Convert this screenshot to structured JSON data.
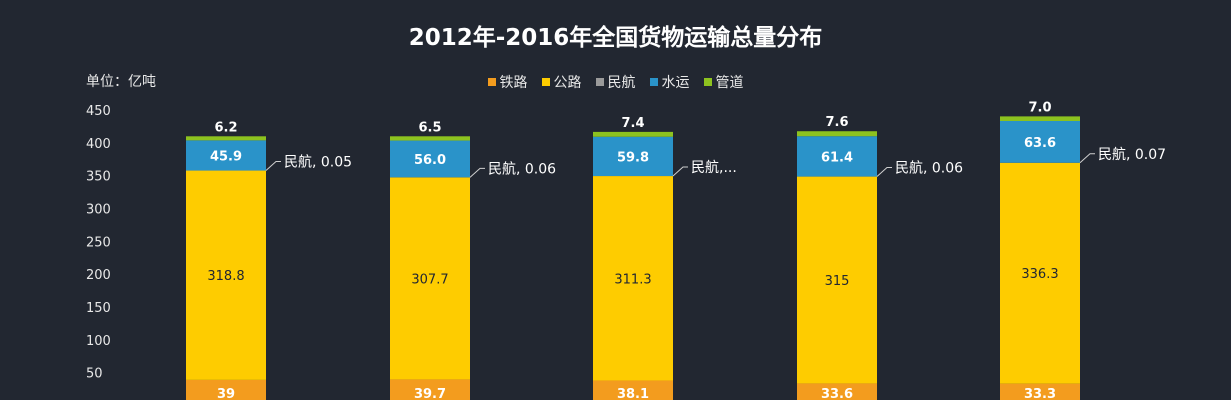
{
  "title": "2012年-2016年全国货物运输总量分布",
  "unit_label": "单位：亿吨",
  "colors": {
    "background": "#222731",
    "tielu": "#F39C1E",
    "gonglu": "#FECC00",
    "minhang": "#9A9A9A",
    "shuiyun": "#2A93C9",
    "guandao": "#8DC21F"
  },
  "legend": [
    {
      "name": "铁路",
      "color": "#F39C1E"
    },
    {
      "name": "公路",
      "color": "#FECC00"
    },
    {
      "name": "民航",
      "color": "#9A9A9A"
    },
    {
      "name": "水运",
      "color": "#2A93C9"
    },
    {
      "name": "管道",
      "color": "#8DC21F"
    }
  ],
  "chart_data": {
    "type": "bar",
    "stacked": true,
    "title": "2012年-2016年全国货物运输总量分布",
    "ylabel": "单位：亿吨",
    "ylim": [
      0,
      450
    ],
    "yticks": [
      50,
      100,
      150,
      200,
      250,
      300,
      350,
      400,
      450
    ],
    "ytick_labels": [
      "50",
      "100",
      "150",
      "200",
      "250",
      "300",
      "350",
      "400",
      "450"
    ],
    "categories": [
      "",
      "",
      "",
      "",
      ""
    ],
    "series": [
      {
        "name": "铁路",
        "color": "#F39C1E",
        "values": [
          39,
          39.7,
          38.1,
          33.6,
          33.3
        ],
        "labels": [
          "39",
          "39.7",
          "38.1",
          "33.6",
          "33.3"
        ]
      },
      {
        "name": "公路",
        "color": "#FECC00",
        "values": [
          318.8,
          307.7,
          311.3,
          315,
          336.3
        ],
        "labels": [
          "318.8",
          "307.7",
          "311.3",
          "315",
          "336.3"
        ]
      },
      {
        "name": "民航",
        "color": "#9A9A9A",
        "values": [
          0.05,
          0.06,
          0.06,
          0.06,
          0.07
        ]
      },
      {
        "name": "水运",
        "color": "#2A93C9",
        "values": [
          45.9,
          56.0,
          59.8,
          61.4,
          63.6
        ],
        "labels": [
          "45.9",
          "56.0",
          "59.8",
          "61.4",
          "63.6"
        ]
      },
      {
        "name": "管道",
        "color": "#8DC21F",
        "values": [
          6.2,
          6.5,
          7.4,
          7.6,
          7.0
        ],
        "labels": [
          "6.2",
          "6.5",
          "7.4",
          "7.6",
          "7.0"
        ]
      }
    ],
    "callouts": [
      "民航, 0.05",
      "民航, 0.06",
      "民航,...",
      "民航, 0.06",
      "民航, 0.07"
    ],
    "grid": false,
    "legend_position": "top-center"
  }
}
